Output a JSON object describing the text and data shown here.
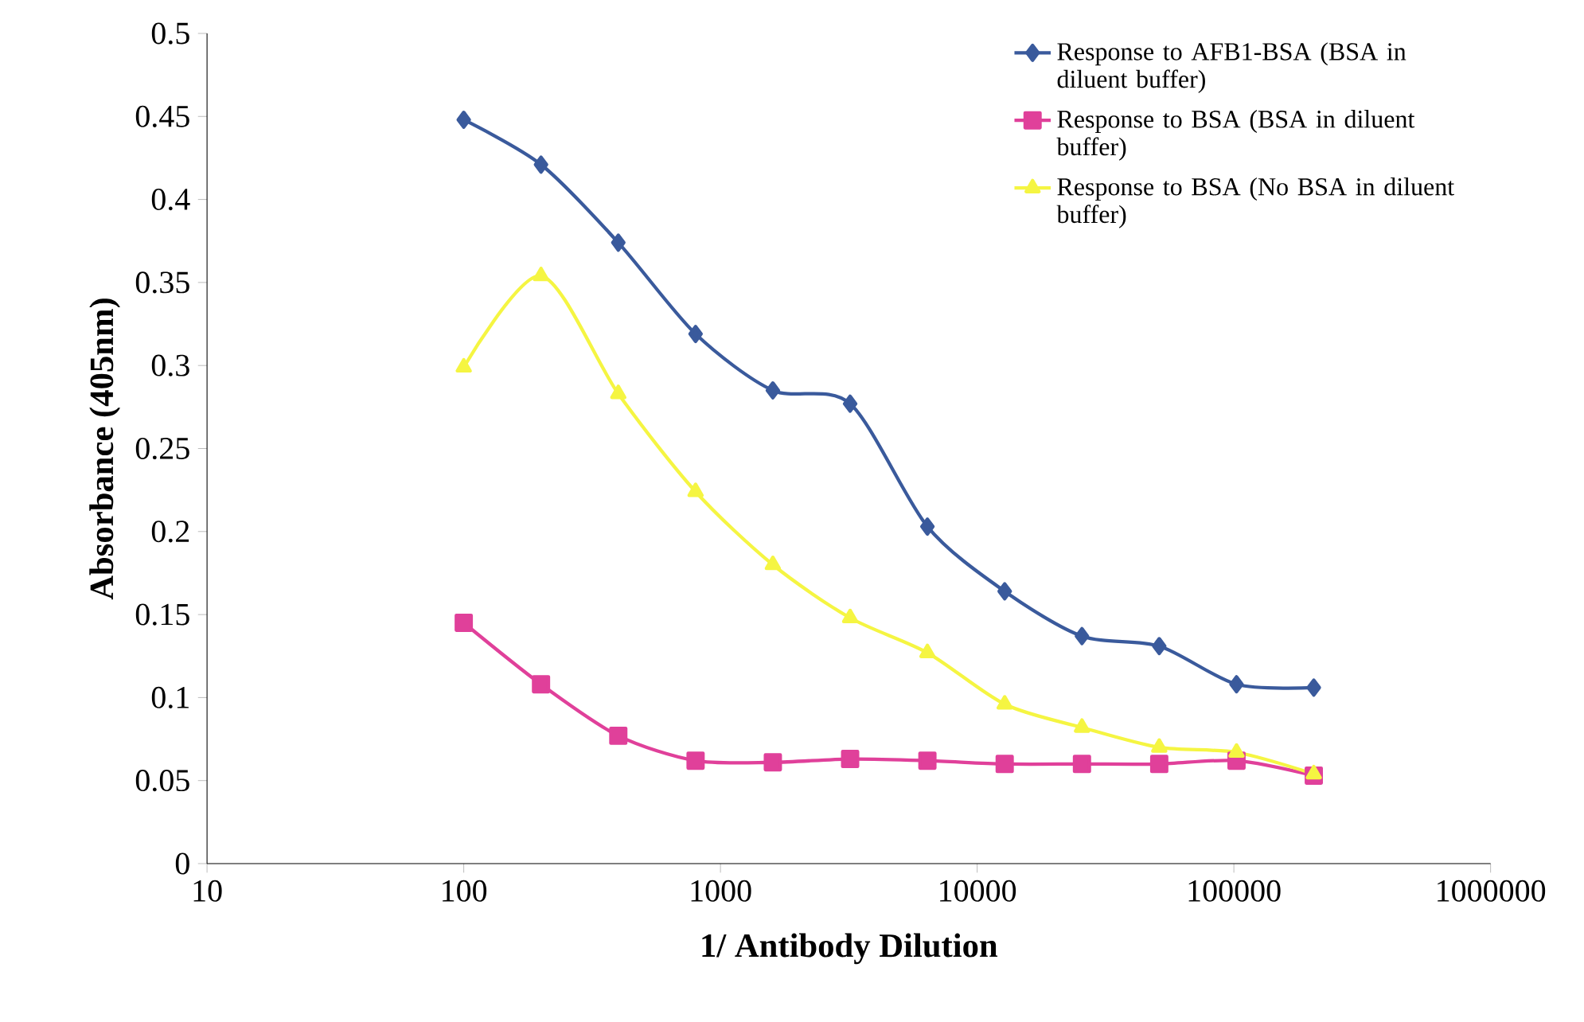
{
  "chart_data": {
    "type": "line",
    "xlabel": "1/ Antibody Dilution",
    "ylabel": "Absorbance (405nm)",
    "x": [
      100,
      200,
      400,
      800,
      1600,
      3200,
      6400,
      12800,
      25600,
      51200,
      102400,
      204800
    ],
    "series": [
      {
        "name": "Response to AFB1-BSA (BSA in diluent buffer)",
        "color": "#3a5a9c",
        "marker": "diamond",
        "values": [
          0.448,
          0.421,
          0.374,
          0.319,
          0.285,
          0.277,
          0.203,
          0.164,
          0.137,
          0.131,
          0.108,
          0.106
        ]
      },
      {
        "name": "Response to BSA (BSA in diluent buffer)",
        "color": "#e0409a",
        "marker": "square",
        "values": [
          0.145,
          0.108,
          0.077,
          0.062,
          0.061,
          0.063,
          0.062,
          0.06,
          0.06,
          0.06,
          0.062,
          0.053
        ]
      },
      {
        "name": "Response to BSA (No BSA in diluent buffer)",
        "color": "#f5f542",
        "marker": "triangle",
        "values": [
          0.299,
          0.354,
          0.283,
          0.224,
          0.18,
          0.148,
          0.127,
          0.096,
          0.082,
          0.07,
          0.067,
          0.054
        ]
      }
    ],
    "log": "x",
    "xlim": [
      10,
      1000000
    ],
    "xticks": [
      10,
      100,
      1000,
      10000,
      100000,
      1000000
    ],
    "ylim": [
      0,
      0.5
    ],
    "yticks": [
      0,
      0.05,
      0.1,
      0.15,
      0.2,
      0.25,
      0.3,
      0.35,
      0.4,
      0.45,
      0.5
    ],
    "grid": false,
    "legend": "top right",
    "line_style": "solid"
  }
}
